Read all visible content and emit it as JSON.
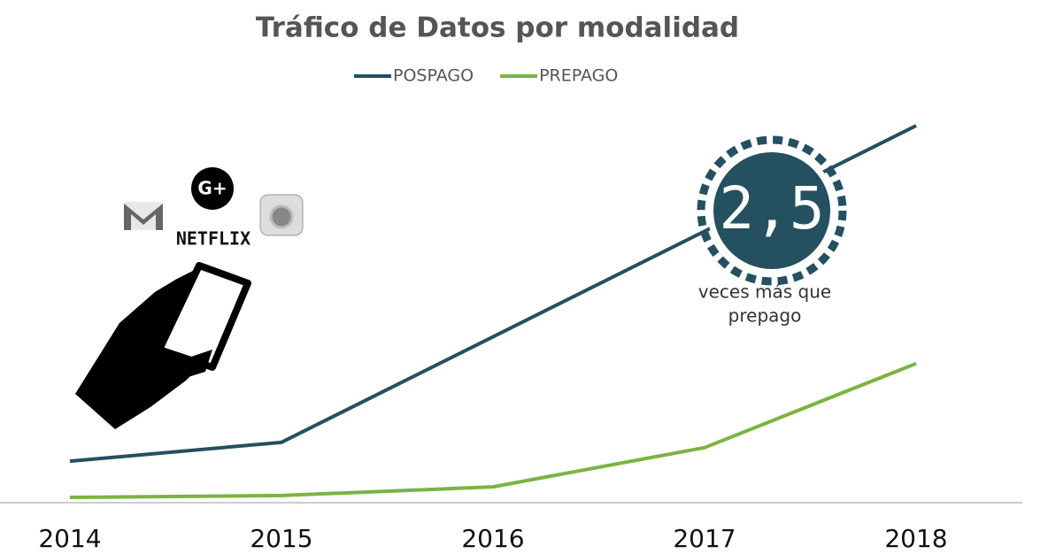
{
  "chart_data": {
    "type": "line",
    "title": "Tráfico de Datos por modalidad",
    "categories": [
      "2014",
      "2015",
      "2016",
      "2017",
      "2018"
    ],
    "series": [
      {
        "name": "POSPAGO",
        "color": "#24505f",
        "values": [
          11,
          16,
          44,
          72,
          100
        ]
      },
      {
        "name": "PREPAGO",
        "color": "#7cb342",
        "values": [
          1.4,
          1.9,
          4.2,
          14.6,
          36.9
        ]
      }
    ],
    "ylim": [
      0,
      100
    ],
    "annotations": {
      "value_label": "2,5",
      "lines": [
        "veces más que",
        "prepago"
      ]
    },
    "icons": [
      "G+",
      "NETFLIX"
    ]
  }
}
